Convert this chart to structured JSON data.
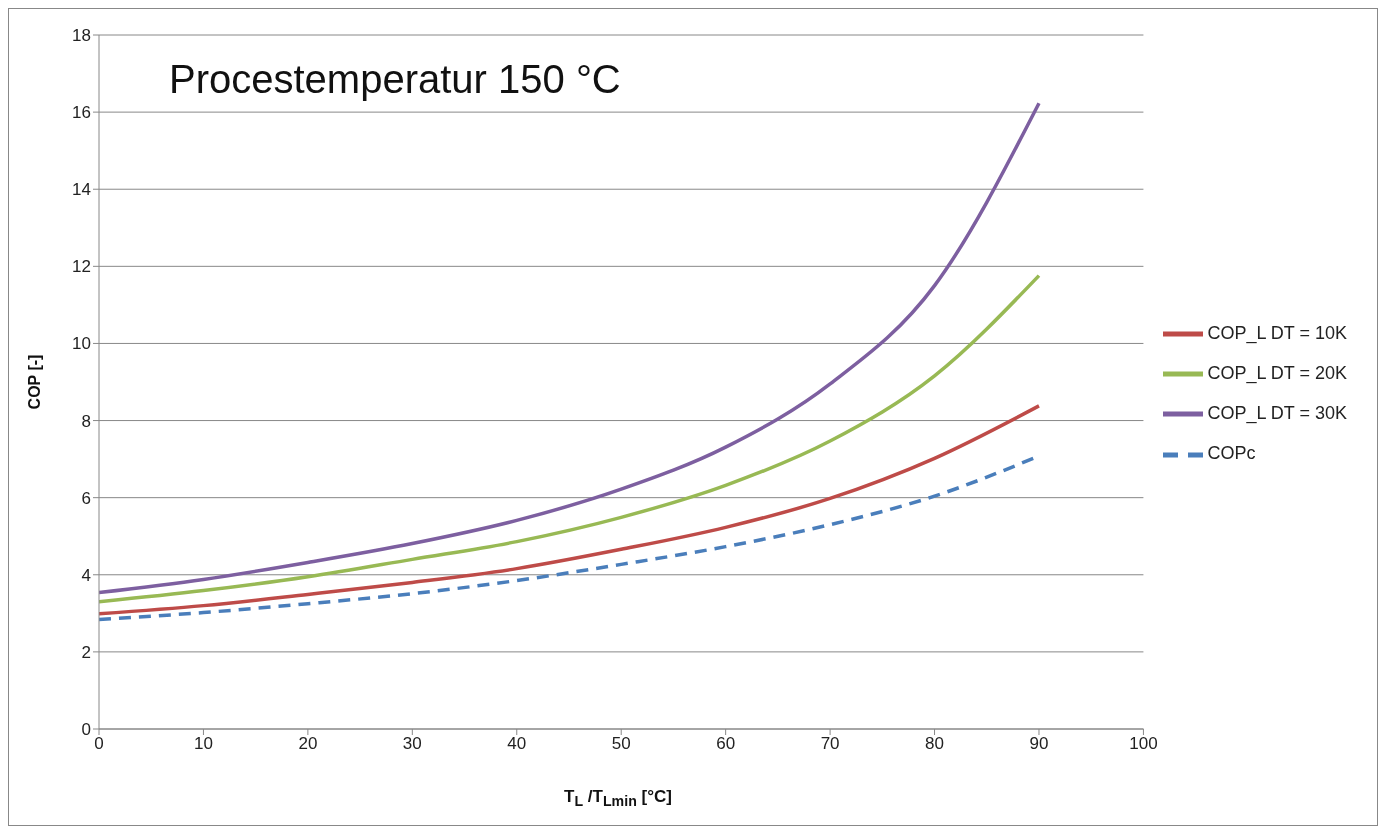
{
  "chart_data": {
    "type": "line",
    "title": "Procestemperatur 150 °C",
    "xlabel": "T$_{L}$ /T$_{Lmin}$ [°C]",
    "ylabel": "COP [-]",
    "x": [
      0,
      10,
      20,
      30,
      40,
      50,
      60,
      70,
      80,
      90
    ],
    "series": [
      {
        "name": "COPc",
        "color": "#4a7ebb",
        "line_style": "dashed",
        "values": [
          2.84,
          3.02,
          3.25,
          3.51,
          3.85,
          4.27,
          4.73,
          5.3,
          6.04,
          7.08
        ]
      },
      {
        "name": "COP_L DT = 10K",
        "color": "#be4b48",
        "values": [
          2.99,
          3.2,
          3.49,
          3.8,
          4.16,
          4.66,
          5.23,
          5.98,
          7.02,
          8.38
        ]
      },
      {
        "name": "COP_L DT = 20K",
        "color": "#98b954",
        "values": [
          3.3,
          3.59,
          3.95,
          4.4,
          4.86,
          5.49,
          6.32,
          7.47,
          9.16,
          11.76
        ]
      },
      {
        "name": "COP_L DT = 30K",
        "color": "#7d5fa0",
        "values": [
          3.54,
          3.88,
          4.32,
          4.81,
          5.41,
          6.22,
          7.31,
          8.95,
          11.5,
          16.23
        ]
      }
    ],
    "xlim": [
      0,
      100
    ],
    "xticks": [
      0,
      10,
      20,
      30,
      40,
      50,
      60,
      70,
      80,
      90,
      100
    ],
    "ylim": [
      0,
      18
    ],
    "yticks": [
      0,
      2,
      4,
      6,
      8,
      10,
      12,
      14,
      16,
      18
    ],
    "grid": "y",
    "legend": "right",
    "line_style": "solid",
    "marker": "none"
  }
}
